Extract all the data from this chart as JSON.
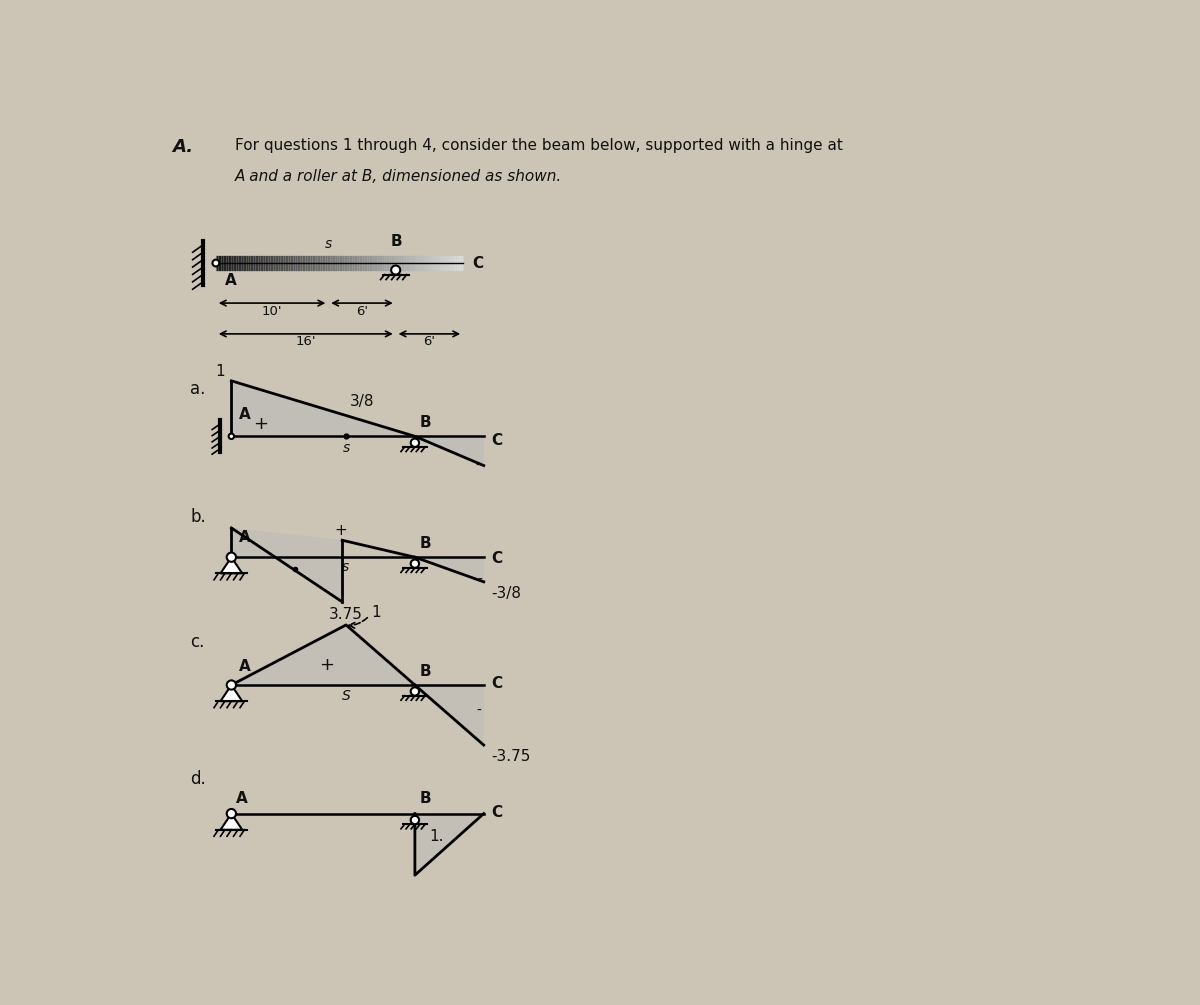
{
  "bg_color": "#ccc4b4",
  "beam_color": "#222222",
  "label_color": "#111111",
  "dim_10": "10'",
  "dim_6_1": "6'",
  "dim_16": "16'",
  "dim_6_2": "6'",
  "sub_a": "a.",
  "sub_b": "b.",
  "sub_c": "c.",
  "sub_d": "d.",
  "val_1": "1",
  "val_3_8": "3/8",
  "val_neg3_8": "-3/8",
  "val_3_75": "3.75",
  "val_1b": "1",
  "val_neg3_75": "-3.75",
  "val_1c": "1.",
  "title_A": "A.",
  "title_line1": "For questions 1 through 4, consider the beam below, supported with a hinge at",
  "title_line2": "A and a roller at B, dimensioned as shown."
}
